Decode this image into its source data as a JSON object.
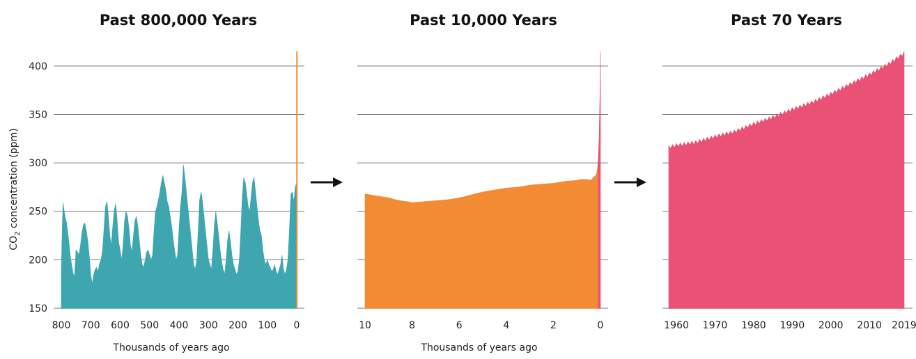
{
  "colors": {
    "teal": "#3ea6ae",
    "orange": "#f38b34",
    "pink": "#e95275",
    "grid": "#7a7a7a",
    "arrow": "#111111"
  },
  "icons": {
    "arrow_1": "right-arrow-icon",
    "arrow_2": "right-arrow-icon"
  },
  "y_label": {
    "prefix": "CO",
    "subscript": "2",
    "suffix": " concentration (ppm)"
  },
  "chart_data": [
    {
      "type": "area",
      "title": "Past 800,000 Years",
      "xlabel": "Thousands of years ago",
      "ylabel": "CO2 concentration (ppm)",
      "ylim": [
        150,
        420
      ],
      "xlim": [
        800,
        0
      ],
      "x_ticks": [
        "800",
        "700",
        "600",
        "500",
        "400",
        "300",
        "200",
        "100",
        "0"
      ],
      "y_ticks": [
        "400",
        "350",
        "300",
        "250",
        "200",
        "150"
      ],
      "grid": true,
      "series": [
        {
          "color": "#3ea6ae",
          "x": [
            800,
            797,
            794,
            790,
            786,
            782,
            778,
            774,
            770,
            765,
            760,
            755,
            750,
            745,
            740,
            735,
            730,
            725,
            720,
            715,
            710,
            705,
            700,
            695,
            690,
            685,
            680,
            675,
            670,
            665,
            660,
            655,
            650,
            645,
            640,
            635,
            630,
            625,
            620,
            615,
            610,
            605,
            600,
            595,
            590,
            585,
            580,
            575,
            570,
            565,
            560,
            555,
            550,
            545,
            540,
            535,
            530,
            525,
            520,
            515,
            510,
            505,
            500,
            495,
            490,
            485,
            480,
            475,
            470,
            465,
            460,
            455,
            450,
            445,
            440,
            435,
            430,
            425,
            420,
            415,
            410,
            405,
            400,
            395,
            390,
            385,
            380,
            375,
            370,
            365,
            360,
            355,
            350,
            345,
            340,
            335,
            330,
            325,
            320,
            315,
            310,
            305,
            300,
            295,
            290,
            285,
            280,
            275,
            270,
            265,
            260,
            255,
            250,
            245,
            240,
            235,
            230,
            225,
            220,
            215,
            210,
            205,
            200,
            195,
            190,
            185,
            180,
            175,
            170,
            165,
            160,
            155,
            150,
            145,
            140,
            135,
            130,
            125,
            120,
            115,
            110,
            105,
            100,
            95,
            90,
            85,
            80,
            75,
            70,
            65,
            60,
            55,
            50,
            45,
            40,
            35,
            30,
            25,
            20,
            15,
            10,
            5,
            0
          ],
          "values": [
            190,
            232,
            259,
            250,
            243,
            238,
            228,
            218,
            205,
            195,
            186,
            183,
            210,
            208,
            205,
            215,
            228,
            236,
            238,
            230,
            220,
            205,
            185,
            175,
            185,
            190,
            192,
            188,
            196,
            200,
            210,
            232,
            255,
            260,
            245,
            225,
            215,
            235,
            252,
            258,
            240,
            218,
            210,
            200,
            215,
            240,
            250,
            245,
            232,
            215,
            208,
            225,
            240,
            245,
            235,
            220,
            205,
            195,
            192,
            200,
            208,
            210,
            205,
            200,
            205,
            230,
            250,
            255,
            262,
            270,
            280,
            287,
            280,
            272,
            260,
            255,
            245,
            235,
            222,
            210,
            200,
            205,
            232,
            255,
            270,
            298,
            285,
            270,
            255,
            240,
            225,
            210,
            195,
            190,
            200,
            230,
            262,
            270,
            260,
            245,
            230,
            215,
            200,
            195,
            190,
            210,
            235,
            250,
            238,
            225,
            210,
            198,
            190,
            185,
            200,
            220,
            230,
            218,
            205,
            195,
            190,
            185,
            188,
            200,
            230,
            265,
            285,
            280,
            268,
            255,
            250,
            265,
            280,
            285,
            270,
            255,
            240,
            230,
            225,
            210,
            200,
            195,
            200,
            195,
            192,
            188,
            190,
            195,
            188,
            185,
            190,
            195,
            205,
            190,
            185,
            190,
            200,
            230,
            268,
            270,
            260,
            275,
            280
          ]
        }
      ],
      "spike": {
        "color": "#f38b34",
        "x_from": 0.6,
        "x_to": 0,
        "peak": 415
      }
    },
    {
      "type": "area",
      "title": "Past 10,000 Years",
      "xlabel": "Thousands of years ago",
      "ylabel": "CO2 concentration (ppm)",
      "ylim": [
        150,
        420
      ],
      "xlim": [
        10,
        0
      ],
      "x_ticks": [
        "10",
        "8",
        "6",
        "4",
        "2",
        "0"
      ],
      "y_ticks": [
        "400",
        "350",
        "300",
        "250",
        "200",
        "150"
      ],
      "grid": true,
      "series": [
        {
          "color": "#f38b34",
          "x": [
            10,
            9.5,
            9,
            8.7,
            8.5,
            8.2,
            8,
            7.5,
            7,
            6.5,
            6.2,
            6,
            5.8,
            5.5,
            5,
            4.5,
            4,
            3.5,
            3,
            2.5,
            2,
            1.5,
            1,
            0.8,
            0.6,
            0.4,
            0.3,
            0.2,
            0.15,
            0.1
          ],
          "values": [
            268,
            266,
            264,
            262,
            261,
            260,
            259,
            260,
            261,
            262,
            263,
            264,
            265,
            267,
            270,
            272,
            274,
            275,
            277,
            278,
            279,
            281,
            282,
            283,
            283,
            282,
            285,
            287,
            290,
            300
          ]
        },
        {
          "color": "#e95275",
          "x": [
            0.1,
            0.08,
            0.06,
            0.04,
            0.02,
            0.01,
            0
          ],
          "values": [
            300,
            312,
            325,
            345,
            370,
            395,
            415
          ]
        }
      ]
    },
    {
      "type": "area",
      "title": "Past 70 Years",
      "xlabel": "",
      "ylabel": "CO2 concentration (ppm)",
      "ylim": [
        150,
        420
      ],
      "xlim": [
        1958,
        2019
      ],
      "x_ticks": [
        "1960",
        "1970",
        "1980",
        "1990",
        "2000",
        "2010",
        "2019"
      ],
      "x_tick_values": [
        1960,
        1970,
        1980,
        1990,
        2000,
        2010,
        2019
      ],
      "y_ticks": [
        "400",
        "350",
        "300",
        "250",
        "200",
        "150"
      ],
      "grid": true,
      "seasonal_amplitude_ppm": 3,
      "series": [
        {
          "color": "#e95275",
          "x": [
            1958,
            1960,
            1965,
            1970,
            1975,
            1980,
            1985,
            1990,
            1995,
            2000,
            2005,
            2010,
            2015,
            2019
          ],
          "values": [
            315,
            317,
            320,
            326,
            331,
            339,
            346,
            354,
            361,
            370,
            380,
            390,
            401,
            412
          ]
        }
      ]
    }
  ]
}
